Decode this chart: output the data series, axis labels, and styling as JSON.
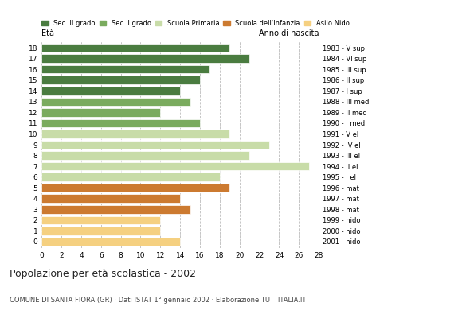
{
  "ages": [
    18,
    17,
    16,
    15,
    14,
    13,
    12,
    11,
    10,
    9,
    8,
    7,
    6,
    5,
    4,
    3,
    2,
    1,
    0
  ],
  "values": [
    19,
    21,
    17,
    16,
    14,
    15,
    12,
    16,
    19,
    23,
    21,
    27,
    18,
    19,
    14,
    15,
    12,
    12,
    14
  ],
  "anno_nascita": [
    "1983 - V sup",
    "1984 - VI sup",
    "1985 - III sup",
    "1986 - II sup",
    "1987 - I sup",
    "1988 - III med",
    "1989 - II med",
    "1990 - I med",
    "1991 - V el",
    "1992 - IV el",
    "1993 - III el",
    "1994 - II el",
    "1995 - I el",
    "1996 - mat",
    "1997 - mat",
    "1998 - mat",
    "1999 - nido",
    "2000 - nido",
    "2001 - nido"
  ],
  "colors": [
    "#4a7c40",
    "#4a7c40",
    "#4a7c40",
    "#4a7c40",
    "#4a7c40",
    "#7aab5e",
    "#7aab5e",
    "#7aab5e",
    "#c8dca8",
    "#c8dca8",
    "#c8dca8",
    "#c8dca8",
    "#c8dca8",
    "#cc7a30",
    "#cc7a30",
    "#cc7a30",
    "#f5d080",
    "#f5d080",
    "#f5d080"
  ],
  "legend_labels": [
    "Sec. II grado",
    "Sec. I grado",
    "Scuola Primaria",
    "Scuola dell'Infanzia",
    "Asilo Nido"
  ],
  "legend_colors": [
    "#4a7c40",
    "#7aab5e",
    "#c8dca8",
    "#cc7a30",
    "#f5d080"
  ],
  "title": "Popolazione per età scolastica - 2002",
  "subtitle": "COMUNE DI SANTA FIORA (GR) · Dati ISTAT 1° gennaio 2002 · Elaborazione TUTTITALIA.IT",
  "xlabel_eta": "Età",
  "xlabel_anno": "Anno di nascita",
  "xlim": [
    0,
    28
  ],
  "xticks": [
    0,
    2,
    4,
    6,
    8,
    10,
    12,
    14,
    16,
    18,
    20,
    22,
    24,
    26,
    28
  ],
  "bg_color": "#ffffff",
  "grid_color": "#bbbbbb",
  "bar_height": 0.78
}
